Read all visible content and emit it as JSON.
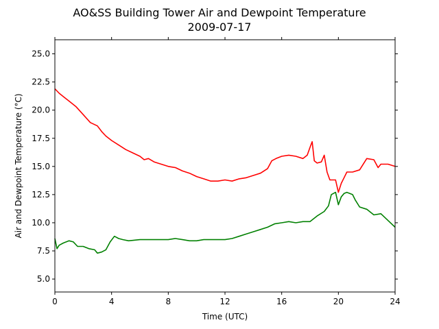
{
  "chart_data": {
    "type": "line",
    "title": "AO&SS Building Tower Air and Dewpoint Temperature",
    "subtitle": "2009-07-17",
    "xlabel": "Time (UTC)",
    "ylabel": "Air and Dewpoint Temperature (°C)",
    "xlim": [
      0,
      24
    ],
    "ylim": [
      3.85,
      26.25
    ],
    "xticks": [
      0,
      4,
      8,
      12,
      16,
      20,
      24
    ],
    "xtick_labels": [
      "0",
      "4",
      "8",
      "12",
      "16",
      "20",
      "24"
    ],
    "yticks": [
      5.0,
      7.5,
      10.0,
      12.5,
      15.0,
      17.5,
      20.0,
      22.5,
      25.0
    ],
    "ytick_labels": [
      "5.0",
      "7.5",
      "10.0",
      "12.5",
      "15.0",
      "17.5",
      "20.0",
      "22.5",
      "25.0"
    ],
    "grid": false,
    "series": [
      {
        "color": "#ff0000",
        "x": [
          0,
          0.3,
          0.6,
          1.0,
          1.5,
          2.0,
          2.5,
          3.0,
          3.3,
          3.6,
          4.0,
          4.5,
          5.0,
          5.5,
          6.0,
          6.3,
          6.6,
          7.0,
          7.5,
          8.0,
          8.5,
          9.0,
          9.5,
          10.0,
          10.5,
          11.0,
          11.5,
          12.0,
          12.5,
          13.0,
          13.5,
          14.0,
          14.5,
          15.0,
          15.3,
          15.6,
          16.0,
          16.5,
          17.0,
          17.5,
          17.8,
          18.0,
          18.15,
          18.3,
          18.5,
          18.8,
          19.0,
          19.2,
          19.4,
          19.6,
          19.8,
          20.0,
          20.2,
          20.4,
          20.6,
          20.8,
          21.0,
          21.5,
          22.0,
          22.5,
          22.8,
          23.0,
          23.5,
          24.0
        ],
        "y": [
          21.9,
          21.5,
          21.2,
          20.8,
          20.3,
          19.6,
          18.9,
          18.6,
          18.1,
          17.7,
          17.3,
          16.9,
          16.5,
          16.2,
          15.9,
          15.6,
          15.7,
          15.4,
          15.2,
          15.0,
          14.9,
          14.6,
          14.4,
          14.1,
          13.9,
          13.7,
          13.7,
          13.8,
          13.7,
          13.9,
          14.0,
          14.2,
          14.4,
          14.8,
          15.5,
          15.7,
          15.9,
          16.0,
          15.9,
          15.7,
          16.0,
          16.7,
          17.2,
          15.5,
          15.3,
          15.4,
          16.0,
          14.5,
          13.8,
          13.8,
          13.8,
          12.7,
          13.5,
          14.0,
          14.5,
          14.5,
          14.5,
          14.7,
          15.7,
          15.6,
          14.9,
          15.2,
          15.2,
          15.0
        ]
      },
      {
        "color": "#008000",
        "x": [
          0,
          0.15,
          0.3,
          0.6,
          1.0,
          1.3,
          1.6,
          2.0,
          2.4,
          2.8,
          3.0,
          3.3,
          3.6,
          3.9,
          4.2,
          4.5,
          4.8,
          5.2,
          6.0,
          7.0,
          8.0,
          8.5,
          9.0,
          9.5,
          10.0,
          10.5,
          11.0,
          11.5,
          12.0,
          12.5,
          13.0,
          13.5,
          14.0,
          14.5,
          15.0,
          15.5,
          16.0,
          16.5,
          17.0,
          17.5,
          18.0,
          18.5,
          19.0,
          19.3,
          19.5,
          19.8,
          20.0,
          20.2,
          20.4,
          20.6,
          20.8,
          21.0,
          21.2,
          21.5,
          22.0,
          22.5,
          23.0,
          23.5,
          24.0
        ],
        "y": [
          8.6,
          7.7,
          8.0,
          8.2,
          8.4,
          8.3,
          7.9,
          7.9,
          7.7,
          7.6,
          7.3,
          7.4,
          7.6,
          8.3,
          8.8,
          8.6,
          8.5,
          8.4,
          8.5,
          8.5,
          8.5,
          8.6,
          8.5,
          8.4,
          8.4,
          8.5,
          8.5,
          8.5,
          8.5,
          8.6,
          8.8,
          9.0,
          9.2,
          9.4,
          9.6,
          9.9,
          10.0,
          10.1,
          10.0,
          10.1,
          10.1,
          10.6,
          11.0,
          11.5,
          12.5,
          12.7,
          11.6,
          12.3,
          12.6,
          12.7,
          12.6,
          12.5,
          12.0,
          11.4,
          11.2,
          10.7,
          10.8,
          10.2,
          9.6
        ]
      }
    ]
  }
}
